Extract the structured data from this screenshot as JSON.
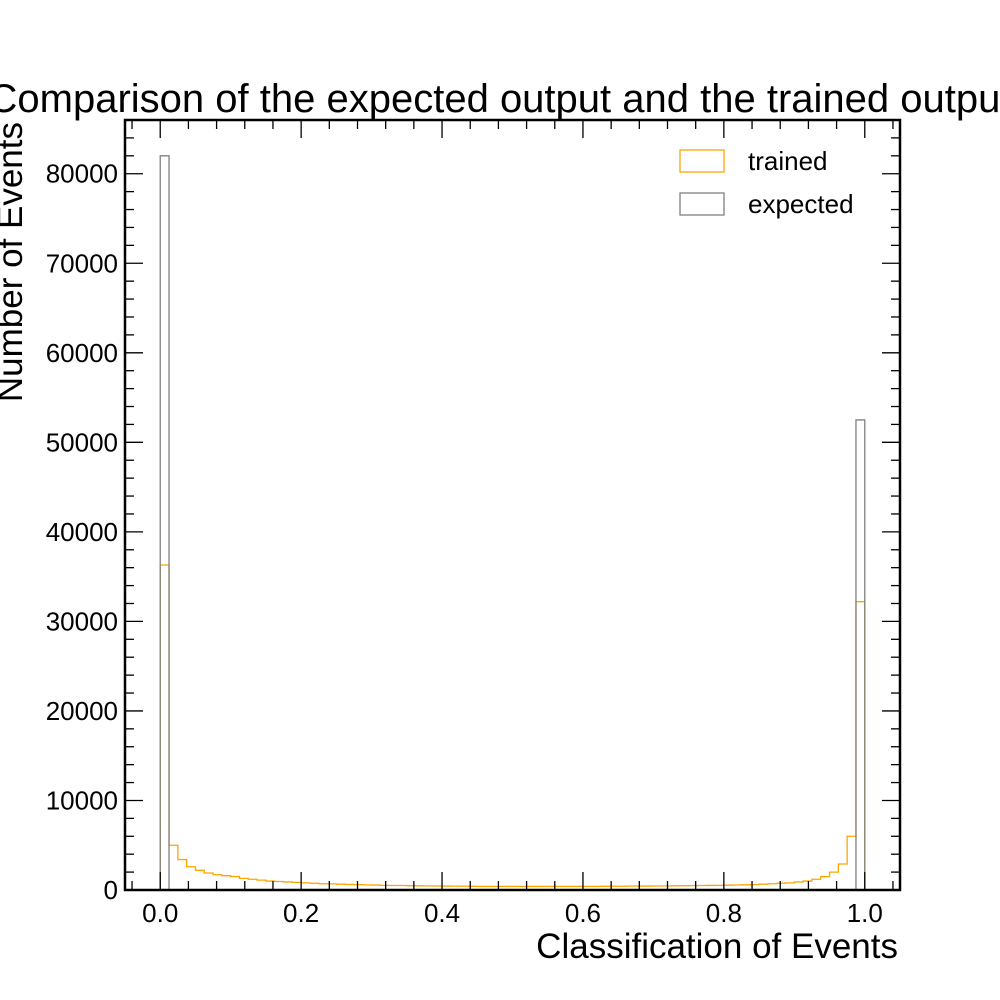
{
  "chart_data": {
    "type": "histogram",
    "title": "Comparison of the expected output and the trained output",
    "xlabel": "Classification of Events",
    "ylabel": "Number of Events",
    "xlim": [
      -0.05,
      1.05
    ],
    "ylim": [
      0,
      86000
    ],
    "x_ticks": [
      0.0,
      0.2,
      0.4,
      0.6,
      0.8,
      1.0
    ],
    "x_tick_labels": [
      "0.0",
      "0.2",
      "0.4",
      "0.6",
      "0.8",
      "1.0"
    ],
    "y_ticks": [
      0,
      10000,
      20000,
      30000,
      40000,
      50000,
      60000,
      70000,
      80000
    ],
    "y_tick_labels": [
      "0",
      "10000",
      "20000",
      "30000",
      "40000",
      "50000",
      "60000",
      "70000",
      "80000"
    ],
    "legend_position": "top-right",
    "bin_edges_range": [
      0.0,
      1.0
    ],
    "bin_count": 80,
    "series": [
      {
        "name": "trained",
        "color": "#ffa500",
        "values": [
          36300,
          5000,
          3400,
          2600,
          2200,
          1900,
          1700,
          1600,
          1500,
          1300,
          1200,
          1100,
          1000,
          950,
          900,
          850,
          800,
          750,
          700,
          680,
          650,
          620,
          600,
          570,
          550,
          520,
          500,
          500,
          480,
          470,
          460,
          450,
          440,
          430,
          420,
          410,
          400,
          400,
          400,
          400,
          400,
          400,
          400,
          400,
          400,
          400,
          400,
          400,
          400,
          400,
          410,
          420,
          420,
          430,
          440,
          440,
          450,
          460,
          470,
          480,
          490,
          500,
          510,
          520,
          540,
          560,
          580,
          600,
          650,
          700,
          750,
          800,
          900,
          1000,
          1200,
          1500,
          2000,
          2900,
          6000,
          32200
        ]
      },
      {
        "name": "expected",
        "color": "#808080",
        "values": [
          82000,
          0,
          0,
          0,
          0,
          0,
          0,
          0,
          0,
          0,
          0,
          0,
          0,
          0,
          0,
          0,
          0,
          0,
          0,
          0,
          0,
          0,
          0,
          0,
          0,
          0,
          0,
          0,
          0,
          0,
          0,
          0,
          0,
          0,
          0,
          0,
          0,
          0,
          0,
          0,
          0,
          0,
          0,
          0,
          0,
          0,
          0,
          0,
          0,
          0,
          0,
          0,
          0,
          0,
          0,
          0,
          0,
          0,
          0,
          0,
          0,
          0,
          0,
          0,
          0,
          0,
          0,
          0,
          0,
          0,
          0,
          0,
          0,
          0,
          0,
          0,
          0,
          0,
          0,
          52500
        ]
      }
    ]
  }
}
